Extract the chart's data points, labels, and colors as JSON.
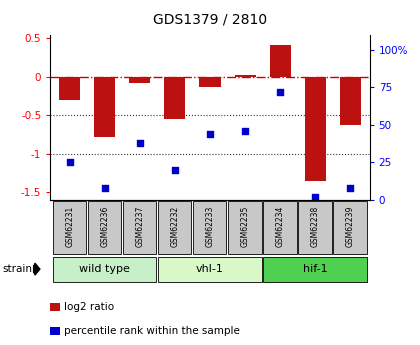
{
  "title": "GDS1379 / 2810",
  "samples": [
    "GSM62231",
    "GSM62236",
    "GSM62237",
    "GSM62232",
    "GSM62233",
    "GSM62235",
    "GSM62234",
    "GSM62238",
    "GSM62239"
  ],
  "log2_ratio": [
    -0.3,
    -0.78,
    -0.08,
    -0.55,
    -0.13,
    0.02,
    0.42,
    -1.35,
    -0.62
  ],
  "percentile_rank": [
    25,
    8,
    38,
    20,
    44,
    46,
    72,
    2,
    8
  ],
  "groups": [
    {
      "label": "wild type",
      "start": 0,
      "end": 3,
      "color": "#c8f0c8"
    },
    {
      "label": "vhl-1",
      "start": 3,
      "end": 6,
      "color": "#d8f8c8"
    },
    {
      "label": "hif-1",
      "start": 6,
      "end": 9,
      "color": "#50d050"
    }
  ],
  "ylim_left": [
    -1.6,
    0.55
  ],
  "ylim_right": [
    0,
    110
  ],
  "right_ticks": [
    0,
    25,
    50,
    75,
    100
  ],
  "right_tick_labels": [
    "0",
    "25",
    "50",
    "75",
    "100%"
  ],
  "left_ticks": [
    -1.5,
    -1.0,
    -0.5,
    0.0,
    0.5
  ],
  "left_tick_labels": [
    "-1.5",
    "-1",
    "-0.5",
    "0",
    "0.5"
  ],
  "bar_color": "#bb1111",
  "dot_color": "#0000cc",
  "hline_color": "#cc0000",
  "dotted_line_color": "#333333",
  "label_bg": "#c8c8c8",
  "strain_label": "strain",
  "legend_bar_label": "log2 ratio",
  "legend_dot_label": "percentile rank within the sample",
  "group_colors": [
    "#c8f0c8",
    "#d8f8c8",
    "#50d050"
  ]
}
